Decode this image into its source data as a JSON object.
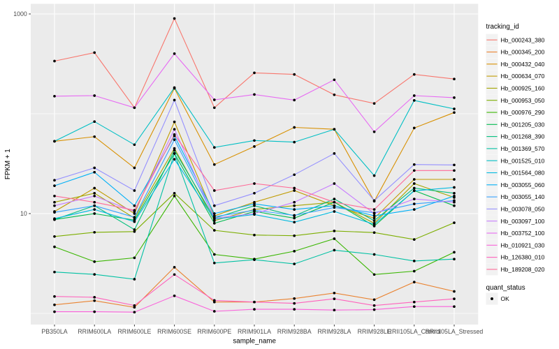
{
  "chart_data": {
    "type": "line",
    "title": "",
    "xlabel": "sample_name",
    "ylabel": "FPKM + 1",
    "y_scale": "log10",
    "ylim": [
      0.77,
      1250
    ],
    "y_tick_labels": [
      "1000",
      "10"
    ],
    "y_tick_values": [
      1000,
      10
    ],
    "y_minor_values": [
      100,
      1
    ],
    "grid": true,
    "legend_position": "right",
    "categories": [
      "PB350LA",
      "RRIM600LA",
      "RRIM600LE",
      "RRIM600SE",
      "RRIM600PE",
      "RRIM901LA",
      "RRIM928BA",
      "RRIM928LA",
      "RRIM928LE",
      "RRII105LA_Control",
      "RRII105LA_Stressed"
    ],
    "series": [
      {
        "name": "Hb_000243_380",
        "color": "#F8766D",
        "values": [
          337,
          410,
          115,
          900,
          115,
          257,
          248,
          155,
          127,
          248,
          223
        ]
      },
      {
        "name": "Hb_000345_200",
        "color": "#EA8331",
        "values": [
          1.22,
          1.34,
          1.15,
          2.9,
          1.3,
          1.3,
          1.41,
          1.6,
          1.37,
          2.06,
          1.66
        ]
      },
      {
        "name": "Hb_000432_040",
        "color": "#D89000",
        "values": [
          53,
          59,
          28.7,
          180,
          31,
          47,
          73,
          70,
          13.3,
          72,
          103
        ]
      },
      {
        "name": "Hb_000634_070",
        "color": "#C09B00",
        "values": [
          10.5,
          18,
          10,
          83,
          9.5,
          13,
          17,
          12,
          9,
          22,
          22
        ]
      },
      {
        "name": "Hb_000925_160",
        "color": "#A3A500",
        "values": [
          13,
          16,
          9,
          45,
          8.5,
          11,
          12,
          13,
          8,
          20,
          14.5
        ]
      },
      {
        "name": "Hb_000953_050",
        "color": "#7CAE00",
        "values": [
          5.9,
          6.5,
          6.6,
          16,
          6.8,
          6.1,
          6.0,
          6.7,
          6.45,
          5.5,
          8.1
        ]
      },
      {
        "name": "Hb_000976_290",
        "color": "#39B600",
        "values": [
          4.65,
          3.3,
          3.6,
          15,
          3.9,
          3.5,
          4.2,
          5.6,
          2.45,
          2.65,
          4.1
        ]
      },
      {
        "name": "Hb_001205_030",
        "color": "#00BB4E",
        "values": [
          8.7,
          10,
          8.6,
          40,
          8,
          10.5,
          9,
          13,
          7.5,
          17,
          12
        ]
      },
      {
        "name": "Hb_001268_390",
        "color": "#00BF7D",
        "values": [
          8.7,
          12,
          6.9,
          43,
          9,
          12,
          9.5,
          14,
          8.5,
          18,
          16
        ]
      },
      {
        "name": "Hb_001369_570",
        "color": "#00C1A3",
        "values": [
          2.6,
          2.46,
          2.2,
          40,
          3.2,
          3.45,
          3.13,
          4.3,
          3.9,
          3.35,
          3.5
        ]
      },
      {
        "name": "Hb_001525_010",
        "color": "#00BFC4",
        "values": [
          53,
          83.5,
          49,
          183,
          46,
          54,
          52,
          70,
          24,
          136,
          112
        ]
      },
      {
        "name": "Hb_001564_080",
        "color": "#00BAE0",
        "values": [
          8.9,
          11,
          8.3,
          35,
          8.8,
          9.8,
          8.2,
          10.5,
          7.8,
          16.9,
          18.3
        ]
      },
      {
        "name": "Hb_003055_060",
        "color": "#00B0F6",
        "values": [
          19,
          26,
          12,
          60,
          10,
          12.5,
          11,
          12,
          9.5,
          11,
          15
        ]
      },
      {
        "name": "Hb_003055_140",
        "color": "#35A2FF",
        "values": [
          10.3,
          12,
          9.2,
          55,
          9.3,
          10.8,
          9.6,
          11.5,
          10.2,
          12.5,
          13.5
        ]
      },
      {
        "name": "Hb_003078_050",
        "color": "#9590FF",
        "values": [
          21.6,
          28.7,
          17,
          137,
          12,
          16,
          24.5,
          40,
          13.5,
          31,
          30.7
        ]
      },
      {
        "name": "Hb_003097_100",
        "color": "#C77CFF",
        "values": [
          12,
          15,
          10.5,
          70,
          9,
          10,
          13,
          20,
          10,
          14,
          13
        ]
      },
      {
        "name": "Hb_003752_100",
        "color": "#E76BF3",
        "values": [
          150,
          152,
          115,
          400,
          138,
          156,
          137,
          219,
          66,
          152,
          145
        ]
      },
      {
        "name": "Hb_010921_030",
        "color": "#FA62DB",
        "values": [
          1.04,
          1.04,
          1.03,
          1.5,
          1.05,
          1.1,
          1.1,
          1.08,
          1.09,
          1.17,
          1.17
        ]
      },
      {
        "name": "Hb_126380_010",
        "color": "#FF62BC",
        "values": [
          1.48,
          1.45,
          1.2,
          2.45,
          1.35,
          1.3,
          1.26,
          1.4,
          1.2,
          1.3,
          1.4
        ]
      },
      {
        "name": "Hb_189208_020",
        "color": "#FF6A98",
        "values": [
          15,
          13,
          10.8,
          62,
          17,
          20,
          18,
          13,
          11,
          27,
          27
        ]
      }
    ],
    "legend": {
      "title": "tracking_id",
      "secondary_title": "quant_status",
      "secondary_items": [
        {
          "label": "OK"
        }
      ]
    },
    "style": {
      "panel_bg": "#EBEBEB",
      "grid_color": "#FFFFFF",
      "tick_text_color": "#4D4D4D",
      "title_text_color": "#000000",
      "point_color": "#000000",
      "legend_key_bg": "#F2F2F2"
    }
  }
}
